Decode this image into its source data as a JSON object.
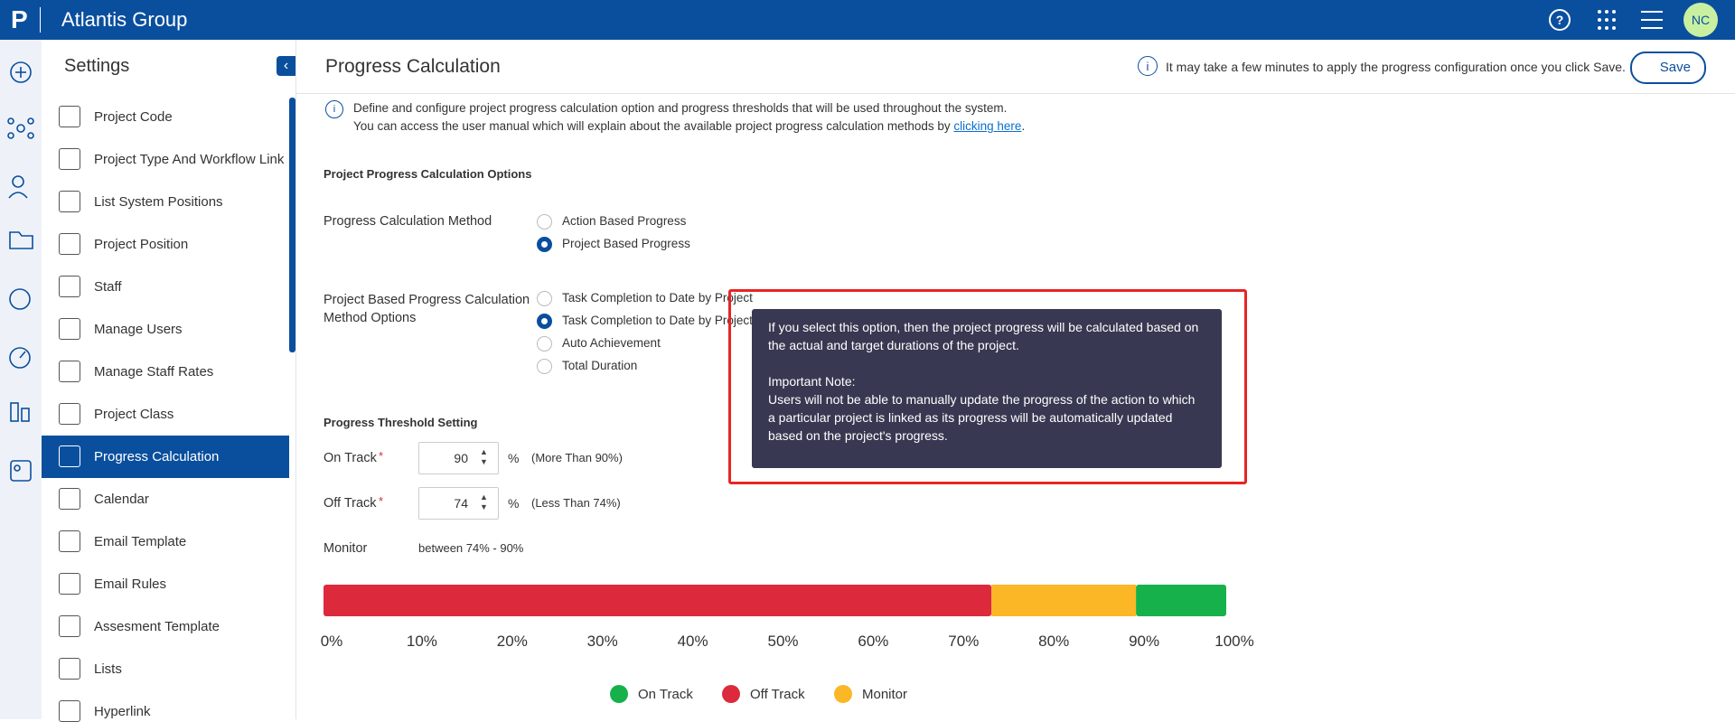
{
  "header": {
    "logo": "P",
    "org": "Atlantis Group",
    "avatar": "NC"
  },
  "sidebar": {
    "title": "Settings",
    "active": 8,
    "items": [
      "Project Code",
      "Project Type And Workflow Link",
      "List System Positions",
      "Project Position",
      "Staff",
      "Manage Users",
      "Manage Staff Rates",
      "Project Class",
      "Progress Calculation",
      "Calendar",
      "Email Template",
      "Email Rules",
      "Assesment Template",
      "Lists",
      "Hyperlink"
    ]
  },
  "page": {
    "title": "Progress Calculation",
    "notice": "It may take a few minutes to apply the progress configuration once you click Save.",
    "save": "Save",
    "intro": [
      "Define and configure project progress calculation option and progress thresholds that will be used throughout the system.",
      "You can access the user manual which will explain about the available project progress calculation methods by "
    ],
    "link": "clicking here",
    "period": "."
  },
  "options": {
    "heading": "Project Progress Calculation Options",
    "method": {
      "label": "Progress Calculation Method",
      "choices": [
        "Action Based Progress",
        "Project Based Progress"
      ],
      "selected": 1
    },
    "method_options": {
      "label": "Project Based Progress Calculation Method Options",
      "choices": [
        "Task Completion to Date by Project",
        "Task Completion to Date by Project",
        "Auto Achievement",
        "Total Duration"
      ],
      "selected": 1
    }
  },
  "tooltip": {
    "lines": [
      "If you select this option, then the project progress will be calculated based on",
      "the actual and target durations of the project."
    ],
    "note_title": "Important Note:",
    "note": [
      "Users will not be able to manually update the progress of the action to which",
      "a particular project is linked as its progress will be automatically updated",
      "based on the project's progress."
    ]
  },
  "thresholds": {
    "heading": "Progress Threshold Setting",
    "required": "*",
    "on_track": {
      "label": "On Track",
      "value": 90,
      "unit": "%",
      "hint": "(More Than 90%)",
      "color": "#16b14b"
    },
    "off_track": {
      "label": "Off Track",
      "value": 74,
      "unit": "%",
      "hint": "(Less Than 74%)",
      "color": "#dc2a3c"
    },
    "monitor": {
      "label": "Monitor",
      "text": "between 74% - 90%",
      "color": "#fbb726"
    }
  },
  "bar": {
    "xlim": [
      0,
      100
    ],
    "ticks": [
      {
        "value": 0,
        "label": "0%"
      },
      {
        "value": 10,
        "label": "10%"
      },
      {
        "value": 20,
        "label": "20%"
      },
      {
        "value": 30,
        "label": "30%"
      },
      {
        "value": 40,
        "label": "40%"
      },
      {
        "value": 50,
        "label": "50%"
      },
      {
        "value": 60,
        "label": "60%"
      },
      {
        "value": 70,
        "label": "70%"
      },
      {
        "value": 80,
        "label": "80%"
      },
      {
        "value": 90,
        "label": "90%"
      },
      {
        "value": 100,
        "label": "100%"
      }
    ]
  }
}
